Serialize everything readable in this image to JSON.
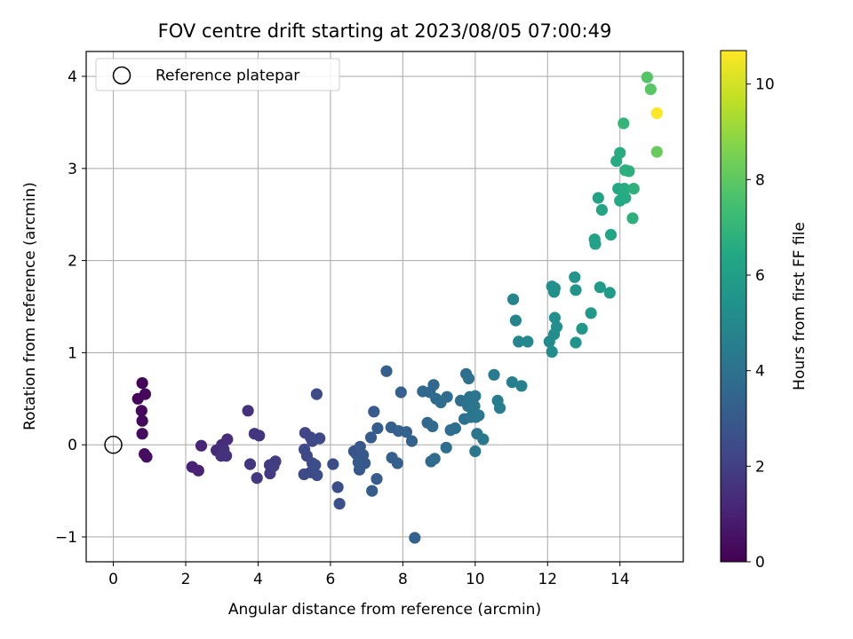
{
  "chart_data": {
    "type": "scatter",
    "title": "FOV centre drift starting at 2023/08/05 07:00:49",
    "xlabel": "Angular distance from reference (arcmin)",
    "ylabel": "Rotation from reference (arcmin)",
    "xlim": [
      -0.75,
      15.75
    ],
    "ylim": [
      -1.27,
      4.27
    ],
    "xticks": [
      0,
      2,
      4,
      6,
      8,
      10,
      12,
      14
    ],
    "yticks": [
      -1,
      0,
      1,
      2,
      3,
      4
    ],
    "xtick_labels": [
      "0",
      "2",
      "4",
      "6",
      "8",
      "10",
      "12",
      "14"
    ],
    "ytick_labels": [
      "−1",
      "0",
      "1",
      "2",
      "3",
      "4"
    ],
    "grid": true,
    "legend": {
      "position": "top-left",
      "entries": [
        "Reference platepar"
      ]
    },
    "reference_point": {
      "x": 0,
      "y": 0
    },
    "colorbar": {
      "label": "Hours from first FF file",
      "min": 0,
      "max": 10.7,
      "ticks": [
        0,
        2,
        4,
        6,
        8,
        10
      ],
      "tick_labels": [
        "0",
        "2",
        "4",
        "6",
        "8",
        "10"
      ],
      "colormap": "viridis"
    },
    "points": [
      [
        0.8,
        0.67,
        0.1
      ],
      [
        0.88,
        0.55,
        0.2
      ],
      [
        0.68,
        0.5,
        0.15
      ],
      [
        0.78,
        0.37,
        0.2
      ],
      [
        0.8,
        0.26,
        0.25
      ],
      [
        0.8,
        0.12,
        0.3
      ],
      [
        0.86,
        -0.1,
        0.35
      ],
      [
        0.92,
        -0.13,
        0.4
      ],
      [
        2.18,
        -0.24,
        1.0
      ],
      [
        2.35,
        -0.28,
        1.05
      ],
      [
        2.43,
        -0.01,
        1.1
      ],
      [
        2.85,
        -0.06,
        1.3
      ],
      [
        3.0,
        0.0,
        1.35
      ],
      [
        3.15,
        0.06,
        1.4
      ],
      [
        3.05,
        -0.05,
        1.45
      ],
      [
        2.98,
        -0.12,
        1.5
      ],
      [
        3.12,
        -0.12,
        1.5
      ],
      [
        3.72,
        0.37,
        1.55
      ],
      [
        3.9,
        0.12,
        1.6
      ],
      [
        4.03,
        0.1,
        1.65
      ],
      [
        3.78,
        -0.21,
        1.7
      ],
      [
        3.97,
        -0.36,
        1.75
      ],
      [
        4.33,
        -0.31,
        1.8
      ],
      [
        4.32,
        -0.22,
        1.85
      ],
      [
        4.48,
        -0.18,
        1.9
      ],
      [
        4.43,
        -0.23,
        1.95
      ],
      [
        5.3,
        0.13,
        2.2
      ],
      [
        5.45,
        0.08,
        2.25
      ],
      [
        5.5,
        0.04,
        2.3
      ],
      [
        5.7,
        0.07,
        2.35
      ],
      [
        5.62,
        0.55,
        2.4
      ],
      [
        5.28,
        -0.05,
        2.3
      ],
      [
        5.35,
        -0.12,
        2.35
      ],
      [
        5.27,
        -0.32,
        2.4
      ],
      [
        5.45,
        -0.3,
        2.4
      ],
      [
        5.5,
        -0.2,
        2.45
      ],
      [
        5.63,
        -0.33,
        2.5
      ],
      [
        5.58,
        -0.22,
        2.5
      ],
      [
        6.07,
        -0.21,
        2.55
      ],
      [
        6.2,
        -0.46,
        2.55
      ],
      [
        6.25,
        -0.64,
        2.6
      ],
      [
        6.65,
        -0.07,
        2.8
      ],
      [
        6.72,
        -0.1,
        2.85
      ],
      [
        6.82,
        -0.02,
        2.9
      ],
      [
        6.9,
        -0.11,
        2.9
      ],
      [
        6.95,
        -0.2,
        2.95
      ],
      [
        6.8,
        -0.27,
        2.95
      ],
      [
        6.77,
        -0.19,
        3.0
      ],
      [
        7.12,
        0.08,
        3.05
      ],
      [
        7.2,
        0.36,
        3.05
      ],
      [
        7.3,
        0.18,
        3.1
      ],
      [
        7.15,
        -0.5,
        3.1
      ],
      [
        7.28,
        -0.37,
        3.15
      ],
      [
        7.55,
        0.8,
        3.2
      ],
      [
        7.68,
        0.19,
        3.2
      ],
      [
        7.7,
        -0.14,
        3.25
      ],
      [
        7.85,
        -0.2,
        3.25
      ],
      [
        7.95,
        0.57,
        3.3
      ],
      [
        7.88,
        0.15,
        3.3
      ],
      [
        8.1,
        0.14,
        3.35
      ],
      [
        8.25,
        0.04,
        3.4
      ],
      [
        8.33,
        -1.01,
        3.4
      ],
      [
        8.55,
        0.58,
        3.6
      ],
      [
        8.68,
        0.24,
        3.6
      ],
      [
        8.75,
        0.57,
        3.65
      ],
      [
        8.85,
        0.65,
        3.65
      ],
      [
        8.92,
        0.5,
        3.7
      ],
      [
        8.82,
        0.2,
        3.7
      ],
      [
        8.78,
        -0.18,
        3.7
      ],
      [
        8.88,
        -0.15,
        3.75
      ],
      [
        9.05,
        0.46,
        3.8
      ],
      [
        9.22,
        0.52,
        3.8
      ],
      [
        9.2,
        -0.03,
        3.85
      ],
      [
        9.32,
        0.16,
        3.85
      ],
      [
        9.45,
        0.18,
        3.9
      ],
      [
        9.6,
        0.48,
        3.9
      ],
      [
        9.75,
        0.77,
        3.95
      ],
      [
        9.82,
        0.72,
        4.0
      ],
      [
        9.7,
        0.28,
        4.0
      ],
      [
        9.8,
        0.42,
        4.05
      ],
      [
        9.85,
        0.52,
        4.05
      ],
      [
        9.92,
        0.47,
        4.1
      ],
      [
        9.95,
        0.35,
        4.1
      ],
      [
        10.0,
        0.53,
        4.15
      ],
      [
        9.98,
        0.42,
        4.15
      ],
      [
        9.88,
        0.3,
        4.2
      ],
      [
        10.02,
        0.3,
        4.2
      ],
      [
        10.1,
        0.32,
        4.25
      ],
      [
        10.05,
        0.12,
        4.25
      ],
      [
        10.22,
        0.06,
        4.3
      ],
      [
        10.0,
        -0.07,
        4.3
      ],
      [
        10.52,
        0.76,
        4.4
      ],
      [
        10.62,
        0.48,
        4.45
      ],
      [
        10.68,
        0.4,
        4.5
      ],
      [
        11.02,
        0.68,
        4.6
      ],
      [
        11.28,
        0.64,
        4.65
      ],
      [
        11.05,
        1.58,
        4.8
      ],
      [
        11.12,
        1.35,
        4.85
      ],
      [
        11.2,
        1.12,
        4.9
      ],
      [
        11.45,
        1.12,
        4.95
      ],
      [
        12.05,
        1.12,
        5.1
      ],
      [
        12.12,
        1.01,
        5.15
      ],
      [
        12.18,
        1.2,
        5.2
      ],
      [
        12.25,
        1.28,
        5.25
      ],
      [
        12.2,
        1.38,
        5.25
      ],
      [
        12.12,
        1.72,
        5.3
      ],
      [
        12.2,
        1.7,
        5.35
      ],
      [
        12.18,
        1.66,
        5.35
      ],
      [
        12.75,
        1.82,
        5.5
      ],
      [
        12.78,
        1.68,
        5.55
      ],
      [
        12.78,
        1.11,
        5.55
      ],
      [
        12.95,
        1.26,
        5.6
      ],
      [
        13.2,
        1.43,
        5.7
      ],
      [
        13.45,
        1.71,
        5.75
      ],
      [
        13.72,
        1.65,
        5.8
      ],
      [
        13.3,
        2.23,
        6.1
      ],
      [
        13.32,
        2.18,
        6.15
      ],
      [
        13.4,
        2.68,
        6.2
      ],
      [
        13.5,
        2.55,
        6.25
      ],
      [
        13.75,
        2.28,
        6.3
      ],
      [
        13.95,
        2.78,
        6.4
      ],
      [
        14.0,
        2.65,
        6.45
      ],
      [
        14.1,
        2.72,
        6.5
      ],
      [
        14.15,
        2.68,
        6.5
      ],
      [
        14.12,
        2.78,
        6.55
      ],
      [
        13.9,
        3.08,
        6.55
      ],
      [
        14.0,
        3.17,
        6.6
      ],
      [
        14.15,
        2.98,
        6.7
      ],
      [
        14.25,
        2.97,
        6.75
      ],
      [
        14.35,
        2.46,
        6.8
      ],
      [
        14.38,
        2.78,
        6.85
      ],
      [
        14.1,
        3.49,
        7.0
      ],
      [
        14.75,
        3.99,
        7.8
      ],
      [
        14.85,
        3.86,
        7.9
      ],
      [
        15.02,
        3.18,
        8.2
      ],
      [
        15.02,
        3.6,
        10.7
      ]
    ]
  }
}
